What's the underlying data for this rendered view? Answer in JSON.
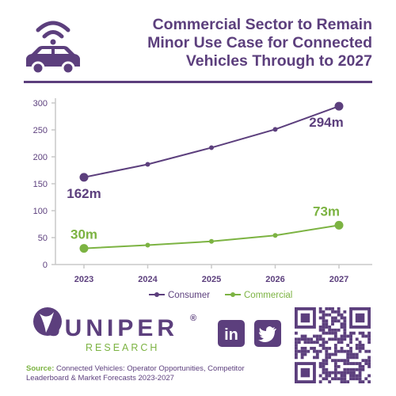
{
  "header": {
    "title_lines": [
      "Commercial Sector to Remain",
      "Minor Use Case for Connected",
      "Vehicles Through to 2027"
    ],
    "icon": "connected-car-icon"
  },
  "colors": {
    "brand_purple": "#5c3f7d",
    "brand_green": "#7cb342",
    "grid": "#c9c9c9",
    "axis_text": "#5c3f7d"
  },
  "chart_data": {
    "type": "line",
    "x": [
      "2023",
      "2024",
      "2025",
      "2026",
      "2027"
    ],
    "ylim": [
      0,
      300
    ],
    "yticks": [
      0,
      50,
      100,
      150,
      200,
      250,
      300
    ],
    "grid": false,
    "legend": "bottom",
    "series": [
      {
        "name": "Consumer",
        "values": [
          162,
          186,
          217,
          251,
          294
        ],
        "color": "#5c3f7d",
        "labels": [
          {
            "index": 0,
            "text": "162m",
            "position": "below"
          },
          {
            "index": 4,
            "text": "294m",
            "position": "below"
          }
        ]
      },
      {
        "name": "Commercial",
        "values": [
          30,
          36,
          43,
          54,
          73
        ],
        "color": "#7cb342",
        "labels": [
          {
            "index": 0,
            "text": "30m",
            "position": "above"
          },
          {
            "index": 4,
            "text": "73m",
            "position": "above"
          }
        ]
      }
    ]
  },
  "branding": {
    "company": "JUNIPER",
    "registered": "®",
    "subtitle": "RESEARCH",
    "social": [
      {
        "name": "linkedin",
        "text": "in"
      },
      {
        "name": "twitter",
        "icon": "twitter-bird-icon"
      }
    ],
    "qr_icon": "qr-code-icon"
  },
  "source": {
    "label": "Source:",
    "text": "Connected Vehicles: Operator Opportunities, Competitor Leaderboard & Market Forecasts 2023-2027"
  }
}
